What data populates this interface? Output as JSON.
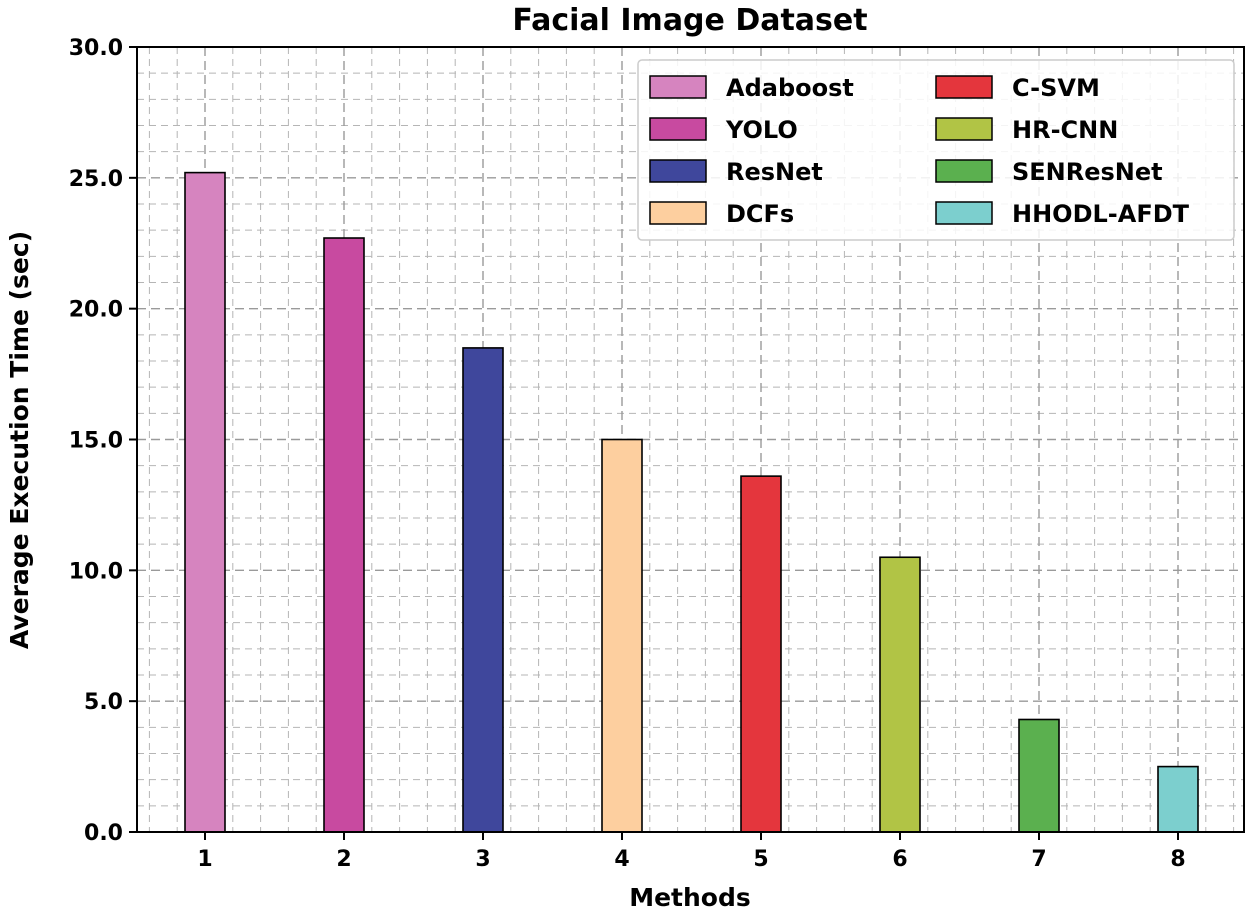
{
  "chart_data": {
    "type": "bar",
    "title": "Facial Image Dataset",
    "xlabel": "Methods",
    "ylabel": "Average Execution Time (sec)",
    "categories": [
      "1",
      "2",
      "3",
      "4",
      "5",
      "6",
      "7",
      "8"
    ],
    "values": [
      25.2,
      22.7,
      18.5,
      15.0,
      13.6,
      10.5,
      4.3,
      2.5
    ],
    "series_names": [
      "Adaboost",
      "YOLO",
      "ResNet",
      "DCFs",
      "C-SVM",
      "HR-CNN",
      "SENResNet",
      "HHODL-AFDT"
    ],
    "colors": [
      "#d684bf",
      "#c84aa0",
      "#3f479c",
      "#fdcf9f",
      "#e4363d",
      "#b1c445",
      "#5bb04f",
      "#7ccfce"
    ],
    "yticks": [
      "0.0",
      "5.0",
      "10.0",
      "15.0",
      "20.0",
      "25.0",
      "30.0"
    ],
    "ylim": [
      0,
      30
    ],
    "grid": true,
    "legend_position": "top-right",
    "legend_columns": 2
  }
}
